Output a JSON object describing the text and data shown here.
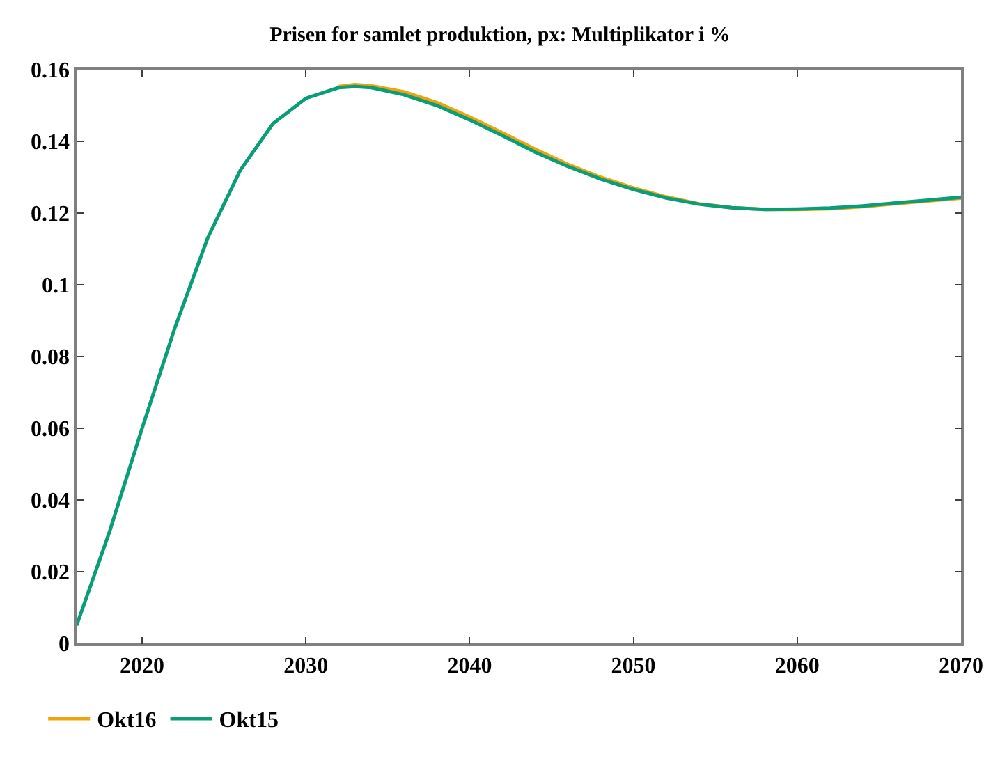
{
  "chart_data": {
    "type": "line",
    "title": "Prisen for samlet produktion, px: Multiplikator i %",
    "x": [
      2016,
      2018,
      2020,
      2022,
      2024,
      2026,
      2028,
      2030,
      2032,
      2033,
      2034,
      2036,
      2038,
      2040,
      2042,
      2044,
      2046,
      2048,
      2050,
      2052,
      2054,
      2056,
      2058,
      2060,
      2062,
      2064,
      2066,
      2068,
      2070
    ],
    "series": [
      {
        "name": "Okt16",
        "color": "#f0a30a",
        "values": [
          null,
          null,
          null,
          null,
          null,
          null,
          null,
          null,
          0.1553,
          0.1558,
          0.1555,
          0.1538,
          0.1508,
          0.1468,
          0.1424,
          0.1378,
          0.1336,
          0.13,
          0.127,
          0.1245,
          0.1226,
          0.1215,
          0.121,
          0.121,
          0.1212,
          0.1218,
          0.1226,
          0.1234,
          0.1242
        ]
      },
      {
        "name": "Okt15",
        "color": "#0a9e78",
        "values": [
          0.005,
          0.031,
          0.06,
          0.088,
          0.113,
          0.132,
          0.145,
          0.152,
          0.155,
          0.1553,
          0.155,
          0.153,
          0.15,
          0.146,
          0.1416,
          0.137,
          0.133,
          0.1295,
          0.1266,
          0.1242,
          0.1225,
          0.1215,
          0.121,
          0.1211,
          0.1214,
          0.122,
          0.1228,
          0.1236,
          0.1244
        ]
      }
    ],
    "xlim": [
      2016,
      2070
    ],
    "xticks": [
      2020,
      2030,
      2040,
      2050,
      2060,
      2070
    ],
    "ylim": [
      0,
      0.16
    ],
    "yticks": [
      0,
      0.02,
      0.04,
      0.06,
      0.08,
      0.1,
      0.12,
      0.14,
      0.16
    ],
    "legend": "bottom left",
    "marker": "none",
    "line_style": "solid"
  }
}
